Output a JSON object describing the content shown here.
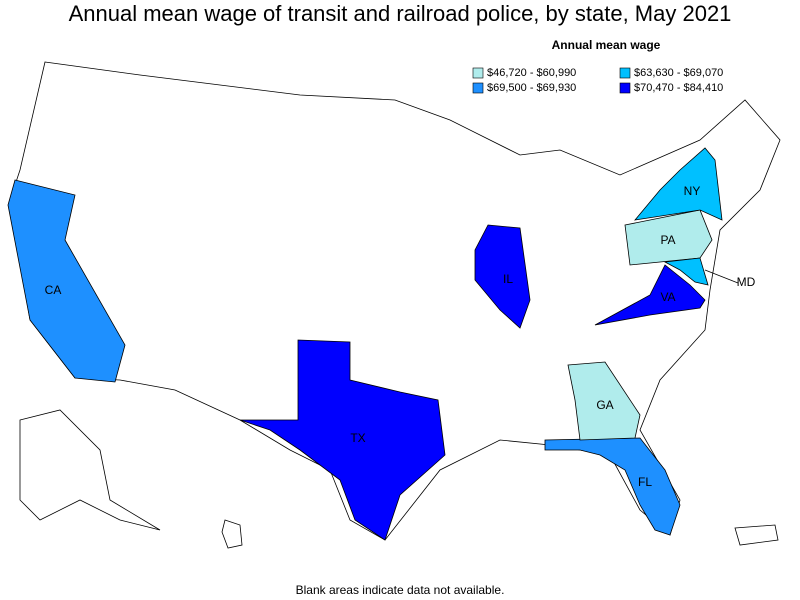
{
  "title": "Annual mean wage of transit and railroad police, by state, May 2021",
  "legend": {
    "title": "Annual mean wage",
    "items": [
      {
        "label": "$46,720 - $60,990",
        "color": "#b0ecec"
      },
      {
        "label": "$63,630 - $69,070",
        "color": "#00c0ff"
      },
      {
        "label": "$69,500 - $69,930",
        "color": "#1e90ff"
      },
      {
        "label": "$70,470 - $84,410",
        "color": "#0000ff"
      }
    ]
  },
  "states": [
    {
      "label": "CA",
      "color": "#1e90ff"
    },
    {
      "label": "TX",
      "color": "#0000ff"
    },
    {
      "label": "FL",
      "color": "#1e90ff"
    },
    {
      "label": "GA",
      "color": "#b0ecec"
    },
    {
      "label": "IL",
      "color": "#0000ff"
    },
    {
      "label": "VA",
      "color": "#0000ff"
    },
    {
      "label": "PA",
      "color": "#b0ecec"
    },
    {
      "label": "NY",
      "color": "#00c0ff"
    },
    {
      "label": "MD",
      "color": "#00c0ff"
    }
  ],
  "footnote": "Blank areas indicate data not available."
}
